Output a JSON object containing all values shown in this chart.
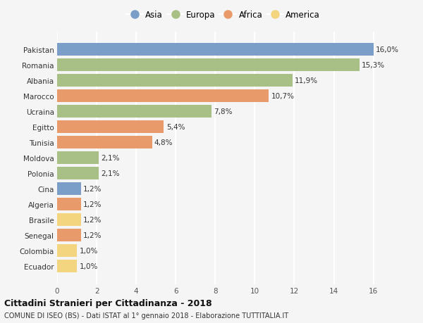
{
  "categories": [
    "Ecuador",
    "Colombia",
    "Senegal",
    "Brasile",
    "Algeria",
    "Cina",
    "Polonia",
    "Moldova",
    "Tunisia",
    "Egitto",
    "Ucraina",
    "Marocco",
    "Albania",
    "Romania",
    "Pakistan"
  ],
  "values": [
    1.0,
    1.0,
    1.2,
    1.2,
    1.2,
    1.2,
    2.1,
    2.1,
    4.8,
    5.4,
    7.8,
    10.7,
    11.9,
    15.3,
    16.0
  ],
  "labels": [
    "1,0%",
    "1,0%",
    "1,2%",
    "1,2%",
    "1,2%",
    "1,2%",
    "2,1%",
    "2,1%",
    "4,8%",
    "5,4%",
    "7,8%",
    "10,7%",
    "11,9%",
    "15,3%",
    "16,0%"
  ],
  "colors": [
    "#f2d57e",
    "#f2d57e",
    "#e89a6a",
    "#f2d57e",
    "#e89a6a",
    "#7b9ec9",
    "#a8bf85",
    "#a8bf85",
    "#e89a6a",
    "#e89a6a",
    "#a8bf85",
    "#e89a6a",
    "#a8bf85",
    "#a8bf85",
    "#7b9ec9"
  ],
  "legend_labels": [
    "Asia",
    "Europa",
    "Africa",
    "America"
  ],
  "legend_colors": [
    "#7b9ec9",
    "#a8bf85",
    "#e89a6a",
    "#f2d57e"
  ],
  "xlim": [
    0,
    16
  ],
  "xticks": [
    0,
    2,
    4,
    6,
    8,
    10,
    12,
    14,
    16
  ],
  "title1": "Cittadini Stranieri per Cittadinanza - 2018",
  "title2": "COMUNE DI ISEO (BS) - Dati ISTAT al 1° gennaio 2018 - Elaborazione TUTTITALIA.IT",
  "background_color": "#f5f5f5",
  "bar_height": 0.82,
  "grid_color": "#ffffff",
  "label_fontsize": 7.5,
  "tick_fontsize": 7.5,
  "ylabel_fontsize": 7.5
}
